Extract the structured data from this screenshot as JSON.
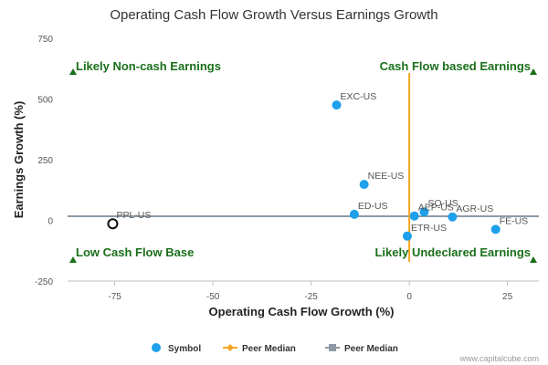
{
  "chart_data": {
    "type": "scatter",
    "title": "Operating Cash Flow Growth Versus Earnings Growth",
    "xlabel": "Operating Cash Flow Growth (%)",
    "ylabel": "Earnings Growth (%)",
    "xlim": [
      -87,
      33
    ],
    "ylim": [
      -250,
      750
    ],
    "xticks": [
      -75,
      -50,
      -25,
      0,
      25
    ],
    "yticks": [
      -250,
      0,
      250,
      500,
      750
    ],
    "grid": false,
    "points": [
      {
        "label": "EXC-US",
        "x": -18.5,
        "y": 475,
        "kind": "symbol"
      },
      {
        "label": "NEE-US",
        "x": -11.5,
        "y": 148,
        "kind": "symbol"
      },
      {
        "label": "ED-US",
        "x": -14,
        "y": 25,
        "kind": "symbol"
      },
      {
        "label": "ETR-US",
        "x": -0.5,
        "y": -65,
        "kind": "symbol"
      },
      {
        "label": "AEP-US",
        "x": 1.3,
        "y": 18,
        "kind": "symbol"
      },
      {
        "label": "SO-US",
        "x": 3.8,
        "y": 35,
        "kind": "symbol"
      },
      {
        "label": "AGR-US",
        "x": 11,
        "y": 14,
        "kind": "symbol"
      },
      {
        "label": "FE-US",
        "x": 22,
        "y": -37,
        "kind": "symbol"
      },
      {
        "label": "PPL-US",
        "x": -75.5,
        "y": -14,
        "kind": "highlight"
      }
    ],
    "peer_median_x": 0,
    "peer_median_y": 17,
    "quadrant_labels": {
      "top_left": "Likely Non-cash Earnings",
      "top_right": "Cash Flow based Earnings",
      "bottom_left": "Low Cash Flow Base",
      "bottom_right": "Likely Undeclared Earnings"
    },
    "legend": [
      {
        "label": "Symbol",
        "marker": "circle",
        "color": "#1ea0ea"
      },
      {
        "label": "Peer Median",
        "marker": "diamond-line",
        "color": "#f5a623"
      },
      {
        "label": "Peer Median",
        "marker": "square-line",
        "color": "#8e9aa6"
      }
    ],
    "legend_position": "bottom-center",
    "colors": {
      "symbol": "#1ea0ea",
      "median_x": "#f5a623",
      "median_y": "#8e9aa6",
      "quadrant": "#1a6f1a",
      "highlight": "#111111"
    }
  },
  "credit": "www.capitalcube.com"
}
